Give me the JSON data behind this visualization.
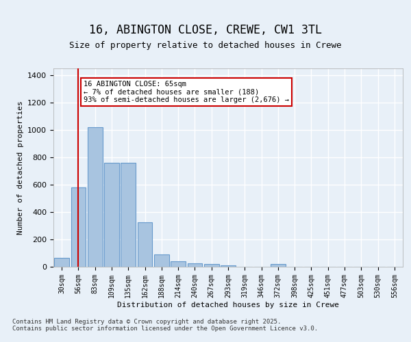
{
  "title": "16, ABINGTON CLOSE, CREWE, CW1 3TL",
  "subtitle": "Size of property relative to detached houses in Crewe",
  "xlabel": "Distribution of detached houses by size in Crewe",
  "ylabel": "Number of detached properties",
  "categories": [
    "30sqm",
    "56sqm",
    "83sqm",
    "109sqm",
    "135sqm",
    "162sqm",
    "188sqm",
    "214sqm",
    "240sqm",
    "267sqm",
    "293sqm",
    "319sqm",
    "346sqm",
    "372sqm",
    "398sqm",
    "425sqm",
    "451sqm",
    "477sqm",
    "503sqm",
    "530sqm",
    "556sqm"
  ],
  "values": [
    65,
    580,
    1020,
    760,
    760,
    325,
    90,
    40,
    25,
    20,
    12,
    0,
    0,
    18,
    0,
    0,
    0,
    0,
    0,
    0,
    0
  ],
  "bar_color": "#a8c4e0",
  "bar_edge_color": "#6699cc",
  "highlight_bar_index": 1,
  "vline_x": 1,
  "vline_color": "#cc0000",
  "annotation_text": "16 ABINGTON CLOSE: 65sqm\n← 7% of detached houses are smaller (188)\n93% of semi-detached houses are larger (2,676) →",
  "annotation_box_color": "#ffffff",
  "annotation_box_edge": "#cc0000",
  "ylim": [
    0,
    1450
  ],
  "yticks": [
    0,
    200,
    400,
    600,
    800,
    1000,
    1200,
    1400
  ],
  "bg_color": "#e8f0f8",
  "grid_color": "#ffffff",
  "footer": "Contains HM Land Registry data © Crown copyright and database right 2025.\nContains public sector information licensed under the Open Government Licence v3.0."
}
